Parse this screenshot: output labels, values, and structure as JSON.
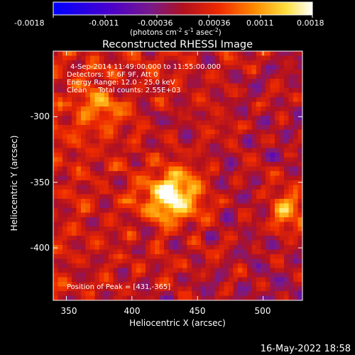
{
  "chart_data": {
    "type": "heatmap",
    "title": "Reconstructed RHESSI Image",
    "xlabel": "Heliocentric X (arcsec)",
    "ylabel": "Heliocentric Y (arcsec)",
    "xlim": [
      340,
      530
    ],
    "ylim": [
      -445,
      -255
    ],
    "xticks": [
      350,
      400,
      450,
      500
    ],
    "yticks": [
      -300,
      -350,
      -400
    ],
    "colorbar": {
      "ticks": [
        "-0.0018",
        "-0.0011",
        "-0.00036",
        "0.00036",
        "0.0011",
        "0.0018"
      ],
      "range": [
        -0.0018,
        0.0018
      ],
      "label": "(photons cm",
      "label_sup1": "-2",
      "label_mid1": " s",
      "label_sup2": "-1",
      "label_mid2": " asec",
      "label_sup3": "-2",
      "label_end": ")"
    },
    "annotations": [
      "4-Sep-2014 11:49:00.000 to 11:55:00.000",
      "Detectors: 3F 6F 9F, Att 0",
      "Energy Range: 12.0 - 25.0 keV",
      "Clean     Total counts: 2.55E+03"
    ],
    "peak_text": "Position of Peak = [431,-365]",
    "peak": {
      "x": 431,
      "y": -365,
      "value": 0.0018
    },
    "secondary_sources": [
      {
        "x": 520,
        "y": -375,
        "value": 0.0012
      },
      {
        "x": 375,
        "y": -300,
        "value": 0.0007
      }
    ]
  },
  "footer": {
    "timestamp": "16-May-2022 18:58"
  }
}
